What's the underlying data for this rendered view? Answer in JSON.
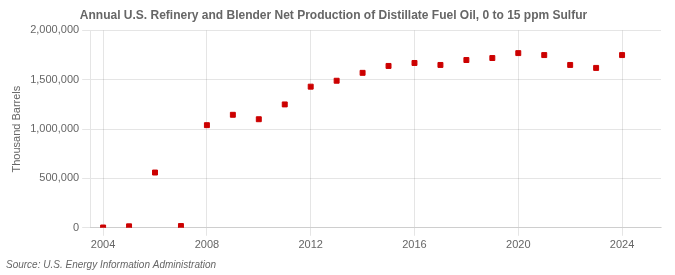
{
  "chart_data": {
    "type": "scatter",
    "title": "Annual U.S. Refinery and Blender Net Production of Distillate Fuel Oil, 0 to 15 ppm Sulfur",
    "y_label": "Thousand Barrels",
    "annotations": [
      "Source: U.S. Energy Information Administration"
    ],
    "x": [
      2004,
      2005,
      2006,
      2007,
      2008,
      2009,
      2010,
      2011,
      2012,
      2013,
      2014,
      2015,
      2016,
      2017,
      2018,
      2019,
      2020,
      2021,
      2022,
      2023,
      2024
    ],
    "values": [
      3000,
      15000,
      560000,
      18000,
      1040000,
      1145000,
      1100000,
      1250000,
      1430000,
      1490000,
      1570000,
      1640000,
      1670000,
      1650000,
      1700000,
      1720000,
      1770000,
      1750000,
      1650000,
      1620000,
      1750000
    ],
    "color": "#cc0000",
    "marker": "square",
    "xlim": [
      2003.5,
      2025.5
    ],
    "xticks": [
      2004,
      2008,
      2012,
      2016,
      2020,
      2024
    ],
    "ylim": [
      0,
      2000000
    ],
    "yticks": [
      0,
      {
        "value": 500000,
        "label": "500,000"
      },
      {
        "value": 1000000,
        "label": "1,000,000"
      },
      {
        "value": 1500000,
        "label": "1,500,000"
      },
      {
        "value": 2000000,
        "label": "2,000,000"
      }
    ],
    "grid": true
  }
}
